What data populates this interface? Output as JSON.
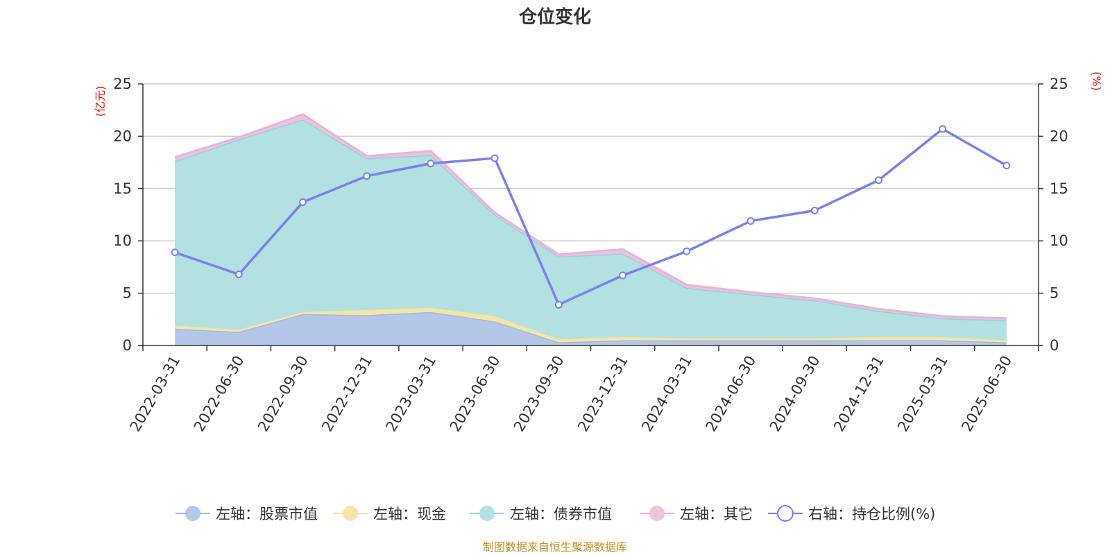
{
  "chart_data": {
    "type": "area",
    "title": "仓位变化",
    "left_axis_unit": "(亿元)",
    "right_axis_unit": "(%)",
    "categories": [
      "2022-03-31",
      "2022-06-30",
      "2022-09-30",
      "2022-12-31",
      "2023-03-31",
      "2023-06-30",
      "2023-09-30",
      "2023-12-31",
      "2024-03-31",
      "2024-06-30",
      "2024-09-30",
      "2024-12-31",
      "2025-03-31",
      "2025-06-30"
    ],
    "ylim_left": [
      0,
      25
    ],
    "ylim_right": [
      0,
      25
    ],
    "left_ticks": [
      "0",
      "5",
      "10",
      "15",
      "20",
      "25"
    ],
    "right_ticks": [
      "0",
      "5",
      "10",
      "15",
      "20",
      "25"
    ],
    "stacked_series": [
      {
        "name": "左轴：股票市值",
        "color": "#9fb8e2",
        "fill": "#b4c7e8",
        "values": [
          1.6,
          1.3,
          3.0,
          2.9,
          3.2,
          2.3,
          0.3,
          0.5,
          0.5,
          0.5,
          0.5,
          0.5,
          0.5,
          0.3
        ]
      },
      {
        "name": "左轴：现金",
        "color": "#f5e3a0",
        "fill": "#f5e6a8",
        "values": [
          0.3,
          0.2,
          0.2,
          0.5,
          0.4,
          0.5,
          0.3,
          0.3,
          0.2,
          0.2,
          0.2,
          0.3,
          0.3,
          0.2
        ]
      },
      {
        "name": "左轴：债券市值",
        "color": "#96d2d4",
        "fill": "#b3e0e1",
        "values": [
          15.7,
          18.2,
          18.4,
          14.5,
          14.6,
          9.7,
          7.9,
          8.0,
          4.8,
          4.2,
          3.6,
          2.5,
          1.8,
          1.9
        ]
      },
      {
        "name": "左轴：其它",
        "color": "#e8b5d8",
        "fill": "#edc3df",
        "values": [
          0.4,
          0.2,
          0.5,
          0.2,
          0.4,
          0.2,
          0.2,
          0.4,
          0.3,
          0.2,
          0.2,
          0.2,
          0.2,
          0.2
        ]
      }
    ],
    "line_series": {
      "name": "右轴：持仓比例(%)",
      "color": "#7b7ff0",
      "values": [
        8.9,
        6.8,
        13.7,
        16.2,
        17.4,
        17.9,
        3.9,
        6.7,
        9.0,
        11.9,
        12.9,
        15.8,
        20.7,
        17.2
      ]
    },
    "legend_position": "bottom",
    "grid": true
  },
  "footer": {
    "source": "制图数据来自恒生聚源数据库"
  }
}
